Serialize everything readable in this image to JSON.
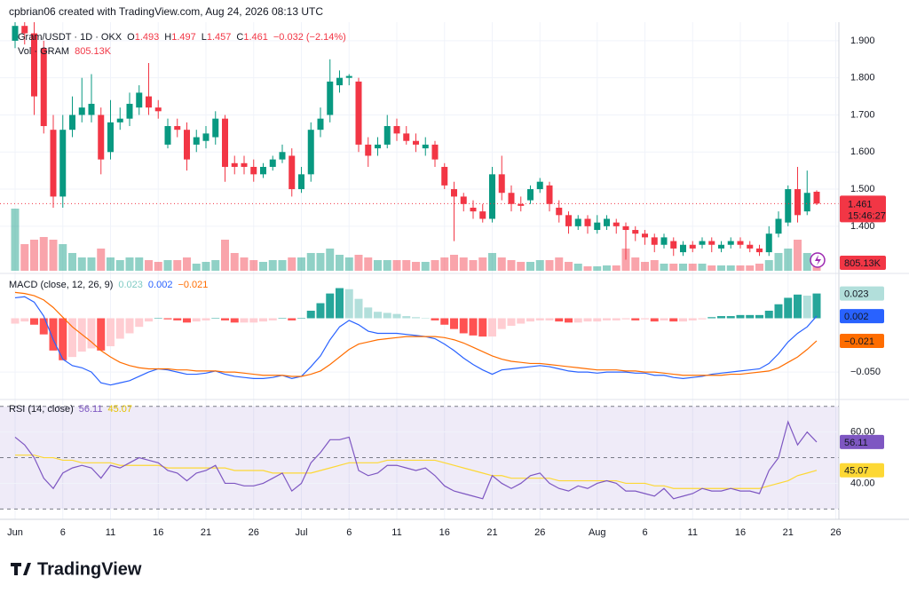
{
  "header": "cpbrian06 created with TradingView.com, Aug 24, 2026 08:13 UTC",
  "logo": "TradingView",
  "chart_data": [
    {
      "type": "candlestick",
      "legend": {
        "symbol": "Gram/USDT · 1D · OKX",
        "o": "O",
        "h": "H",
        "l": "L",
        "c": "C",
        "change": "−0.032 (−2.14%)",
        "vol": "Vol · GRAM"
      },
      "categories": [
        "Jun",
        null,
        null,
        null,
        null,
        "6",
        null,
        null,
        null,
        null,
        "11",
        null,
        null,
        null,
        null,
        "16",
        null,
        null,
        null,
        null,
        "21",
        null,
        null,
        null,
        null,
        "26",
        null,
        null,
        null,
        null,
        "Jul",
        null,
        null,
        null,
        null,
        "6",
        null,
        null,
        null,
        null,
        "11",
        null,
        null,
        null,
        null,
        "16",
        null,
        null,
        null,
        null,
        "21",
        null,
        null,
        null,
        null,
        "26",
        null,
        null,
        null,
        null,
        null,
        "Aug",
        null,
        null,
        null,
        null,
        "6",
        null,
        null,
        null,
        null,
        "11",
        null,
        null,
        null,
        null,
        "16",
        null,
        null,
        null,
        null,
        "21",
        null,
        null,
        null
      ],
      "future_categories": [
        null,
        "26"
      ],
      "open": [
        1.9,
        1.94,
        1.92,
        1.88,
        1.66,
        1.48,
        1.66,
        1.7,
        1.7,
        1.7,
        1.6,
        1.68,
        1.69,
        1.72,
        1.75,
        1.72,
        1.62,
        1.67,
        1.66,
        1.62,
        1.63,
        1.64,
        1.69,
        1.57,
        1.57,
        1.56,
        1.54,
        1.56,
        1.58,
        1.59,
        1.5,
        1.54,
        1.66,
        1.7,
        1.78,
        1.8,
        1.79,
        1.62,
        1.61,
        1.62,
        1.67,
        1.65,
        1.63,
        1.61,
        1.62,
        1.56,
        1.5,
        1.48,
        1.45,
        1.44,
        1.42,
        1.54,
        1.49,
        1.46,
        1.47,
        1.5,
        1.51,
        1.45,
        1.43,
        1.4,
        1.42,
        1.39,
        1.4,
        1.41,
        1.4,
        1.39,
        1.38,
        1.37,
        1.35,
        1.36,
        1.33,
        1.35,
        1.35,
        1.36,
        1.34,
        1.35,
        1.36,
        1.35,
        1.34,
        1.33,
        1.38,
        1.41,
        1.5,
        1.44,
        1.493
      ],
      "high": [
        1.95,
        1.95,
        1.95,
        1.9,
        1.7,
        1.7,
        1.75,
        1.8,
        1.81,
        1.72,
        1.74,
        1.72,
        1.76,
        1.78,
        1.84,
        1.74,
        1.69,
        1.69,
        1.68,
        1.66,
        1.67,
        1.71,
        1.7,
        1.59,
        1.59,
        1.58,
        1.57,
        1.59,
        1.62,
        1.61,
        1.56,
        1.68,
        1.72,
        1.85,
        1.82,
        1.81,
        1.8,
        1.64,
        1.64,
        1.7,
        1.69,
        1.67,
        1.65,
        1.64,
        1.63,
        1.57,
        1.52,
        1.49,
        1.47,
        1.46,
        1.56,
        1.59,
        1.51,
        1.48,
        1.51,
        1.53,
        1.52,
        1.47,
        1.44,
        1.43,
        1.43,
        1.43,
        1.43,
        1.42,
        1.41,
        1.4,
        1.39,
        1.38,
        1.38,
        1.37,
        1.36,
        1.36,
        1.37,
        1.37,
        1.36,
        1.37,
        1.37,
        1.36,
        1.35,
        1.4,
        1.44,
        1.51,
        1.56,
        1.55,
        1.497
      ],
      "low": [
        1.88,
        1.89,
        1.7,
        1.65,
        1.45,
        1.45,
        1.64,
        1.68,
        1.68,
        1.54,
        1.58,
        1.66,
        1.67,
        1.7,
        1.7,
        1.69,
        1.61,
        1.64,
        1.55,
        1.6,
        1.61,
        1.62,
        1.52,
        1.54,
        1.54,
        1.52,
        1.53,
        1.55,
        1.57,
        1.48,
        1.49,
        1.52,
        1.64,
        1.68,
        1.76,
        1.78,
        1.6,
        1.56,
        1.59,
        1.61,
        1.63,
        1.62,
        1.6,
        1.59,
        1.56,
        1.5,
        1.36,
        1.44,
        1.42,
        1.41,
        1.41,
        1.47,
        1.44,
        1.44,
        1.46,
        1.49,
        1.44,
        1.41,
        1.38,
        1.39,
        1.38,
        1.38,
        1.39,
        1.38,
        1.31,
        1.36,
        1.35,
        1.33,
        1.34,
        1.32,
        1.32,
        1.33,
        1.34,
        1.33,
        1.33,
        1.34,
        1.34,
        1.33,
        1.32,
        1.32,
        1.37,
        1.4,
        1.41,
        1.43,
        1.457
      ],
      "close": [
        1.94,
        1.92,
        1.75,
        1.67,
        1.48,
        1.66,
        1.7,
        1.72,
        1.73,
        1.58,
        1.68,
        1.69,
        1.73,
        1.76,
        1.72,
        1.71,
        1.67,
        1.66,
        1.58,
        1.64,
        1.65,
        1.69,
        1.56,
        1.56,
        1.56,
        1.54,
        1.56,
        1.58,
        1.6,
        1.5,
        1.54,
        1.66,
        1.69,
        1.79,
        1.8,
        1.805,
        1.62,
        1.59,
        1.62,
        1.67,
        1.65,
        1.63,
        1.62,
        1.62,
        1.58,
        1.51,
        1.48,
        1.46,
        1.44,
        1.42,
        1.54,
        1.49,
        1.46,
        1.455,
        1.5,
        1.52,
        1.46,
        1.43,
        1.4,
        1.42,
        1.4,
        1.41,
        1.42,
        1.4,
        1.39,
        1.38,
        1.37,
        1.35,
        1.37,
        1.34,
        1.35,
        1.34,
        1.36,
        1.35,
        1.35,
        1.36,
        1.35,
        1.34,
        1.33,
        1.38,
        1.42,
        1.5,
        1.43,
        1.49,
        1.461
      ],
      "volume": [
        3757000,
        1610000,
        1879000,
        2040000,
        1879000,
        1610000,
        1074000,
        805000,
        805000,
        1342000,
        805000,
        644000,
        805000,
        805000,
        644000,
        537000,
        644000,
        644000,
        805000,
        430000,
        537000,
        644000,
        1879000,
        1074000,
        805000,
        644000,
        537000,
        644000,
        644000,
        805000,
        805000,
        1074000,
        1074000,
        1342000,
        966000,
        805000,
        966000,
        805000,
        644000,
        644000,
        644000,
        644000,
        537000,
        537000,
        644000,
        805000,
        966000,
        805000,
        644000,
        805000,
        1074000,
        805000,
        644000,
        537000,
        537000,
        644000,
        644000,
        805000,
        537000,
        430000,
        268000,
        268000,
        322000,
        322000,
        1342000,
        805000,
        537000,
        644000,
        430000,
        430000,
        430000,
        430000,
        430000,
        322000,
        322000,
        322000,
        322000,
        322000,
        430000,
        644000,
        1074000,
        1342000,
        1879000,
        1074000,
        805130
      ],
      "volume_label": "805.13K",
      "up_color": "#089981",
      "down_color": "#f23645",
      "ylim": [
        1.28,
        1.95
      ],
      "yticks": [
        {
          "value": 1.4,
          "label": "1.400"
        },
        {
          "value": 1.5,
          "label": "1.500"
        },
        {
          "value": 1.6,
          "label": "1.600"
        },
        {
          "value": 1.7,
          "label": "1.700"
        },
        {
          "value": 1.8,
          "label": "1.800"
        },
        {
          "value": 1.9,
          "label": "1.900"
        }
      ],
      "countdown": "15:46:27",
      "grid": true
    },
    {
      "type": "macd",
      "title": "MACD (close, 12, 26, 9)",
      "histogram": [
        -0.005,
        -0.003,
        -0.006,
        -0.015,
        -0.03,
        -0.039,
        -0.036,
        -0.031,
        -0.028,
        -0.03,
        -0.026,
        -0.019,
        -0.014,
        -0.008,
        -0.003,
        0,
        -0.001,
        -0.002,
        -0.004,
        -0.003,
        -0.002,
        0,
        -0.002,
        -0.004,
        -0.004,
        -0.004,
        -0.003,
        -0.002,
        0,
        -0.002,
        0,
        0.007,
        0.014,
        0.023,
        0.028,
        0.027,
        0.018,
        0.01,
        0.006,
        0.005,
        0.004,
        0.002,
        0.001,
        0,
        -0.002,
        -0.006,
        -0.01,
        -0.014,
        -0.016,
        -0.017,
        -0.017,
        -0.01,
        -0.007,
        -0.005,
        -0.003,
        -0.002,
        -0.002,
        -0.003,
        -0.004,
        -0.004,
        -0.003,
        -0.003,
        -0.002,
        -0.002,
        -0.001,
        -0.002,
        -0.001,
        -0.003,
        -0.002,
        -0.003,
        -0.003,
        -0.002,
        -0.001,
        0.001,
        0.002,
        0.002,
        0.003,
        0.003,
        0.003,
        0.007,
        0.013,
        0.019,
        0.022,
        0.021,
        0.023
      ],
      "macd": [
        0.019,
        0.02,
        0.015,
        0.002,
        -0.02,
        -0.038,
        -0.044,
        -0.046,
        -0.05,
        -0.06,
        -0.062,
        -0.06,
        -0.058,
        -0.054,
        -0.05,
        -0.047,
        -0.048,
        -0.05,
        -0.052,
        -0.052,
        -0.051,
        -0.049,
        -0.052,
        -0.054,
        -0.055,
        -0.056,
        -0.056,
        -0.055,
        -0.053,
        -0.056,
        -0.054,
        -0.045,
        -0.035,
        -0.02,
        -0.008,
        -0.002,
        -0.006,
        -0.012,
        -0.014,
        -0.014,
        -0.014,
        -0.015,
        -0.016,
        -0.017,
        -0.019,
        -0.024,
        -0.03,
        -0.037,
        -0.043,
        -0.048,
        -0.052,
        -0.048,
        -0.047,
        -0.046,
        -0.045,
        -0.044,
        -0.045,
        -0.047,
        -0.049,
        -0.05,
        -0.05,
        -0.051,
        -0.05,
        -0.05,
        -0.05,
        -0.051,
        -0.051,
        -0.053,
        -0.053,
        -0.055,
        -0.056,
        -0.055,
        -0.054,
        -0.052,
        -0.051,
        -0.05,
        -0.049,
        -0.048,
        -0.047,
        -0.042,
        -0.033,
        -0.022,
        -0.014,
        -0.008,
        0.002
      ],
      "signal": [
        0.024,
        0.023,
        0.021,
        0.017,
        0.01,
        0.001,
        -0.008,
        -0.015,
        -0.022,
        -0.03,
        -0.036,
        -0.041,
        -0.044,
        -0.046,
        -0.047,
        -0.047,
        -0.047,
        -0.048,
        -0.048,
        -0.049,
        -0.049,
        -0.049,
        -0.05,
        -0.05,
        -0.051,
        -0.052,
        -0.053,
        -0.053,
        -0.053,
        -0.054,
        -0.054,
        -0.052,
        -0.049,
        -0.043,
        -0.036,
        -0.029,
        -0.024,
        -0.022,
        -0.02,
        -0.019,
        -0.018,
        -0.017,
        -0.017,
        -0.017,
        -0.017,
        -0.018,
        -0.02,
        -0.023,
        -0.027,
        -0.031,
        -0.035,
        -0.038,
        -0.04,
        -0.041,
        -0.042,
        -0.042,
        -0.043,
        -0.044,
        -0.045,
        -0.046,
        -0.047,
        -0.048,
        -0.048,
        -0.048,
        -0.049,
        -0.049,
        -0.05,
        -0.05,
        -0.051,
        -0.052,
        -0.053,
        -0.053,
        -0.053,
        -0.053,
        -0.053,
        -0.052,
        -0.052,
        -0.051,
        -0.05,
        -0.049,
        -0.046,
        -0.041,
        -0.036,
        -0.029,
        -0.021
      ],
      "histogram_label": "0.023",
      "macd_label": "0.002",
      "signal_label": "−0.021",
      "histogram_colors": [
        "#26a69a",
        "#b2dfdb",
        "#ffcdd2",
        "#ff5252"
      ],
      "macd_color": "#2962ff",
      "signal_color": "#ff6d00",
      "ylim": [
        -0.073,
        0.04
      ],
      "yticks": [
        {
          "value": -0.05,
          "label": "−0.050"
        }
      ]
    },
    {
      "type": "rsi",
      "title": "RSI (14, close)",
      "rsi": [
        58,
        55,
        50,
        42,
        38,
        44,
        46,
        47,
        46,
        42,
        47,
        46,
        48,
        50,
        49,
        48,
        45,
        44,
        41,
        44,
        45,
        47,
        40,
        40,
        39,
        39,
        40,
        42,
        44,
        37,
        40,
        48,
        52,
        57,
        57,
        58,
        45,
        43,
        44,
        47,
        47,
        46,
        45,
        46,
        43,
        39,
        37,
        36,
        35,
        34,
        43,
        40,
        38,
        40,
        43,
        44,
        40,
        38,
        37,
        39,
        38,
        40,
        41,
        40,
        37,
        37,
        36,
        35,
        38,
        34,
        35,
        36,
        38,
        37,
        37,
        38,
        37,
        37,
        36,
        45,
        50,
        64,
        55,
        60,
        56.11
      ],
      "ma": [
        51,
        51,
        51,
        50,
        50,
        49,
        49,
        48,
        48,
        48,
        48,
        47,
        47,
        47,
        47,
        47,
        46,
        46,
        46,
        46,
        46,
        46,
        46,
        45,
        45,
        45,
        45,
        44,
        44,
        44,
        44,
        44,
        45,
        46,
        47,
        48,
        48,
        48,
        48,
        49,
        49,
        49,
        49,
        49,
        49,
        48,
        47,
        46,
        45,
        44,
        43,
        43,
        42,
        42,
        42,
        42,
        42,
        41,
        41,
        41,
        41,
        41,
        41,
        41,
        40,
        40,
        40,
        39,
        39,
        38,
        38,
        38,
        38,
        38,
        38,
        38,
        38,
        38,
        38,
        39,
        40,
        41,
        43,
        44,
        45.07
      ],
      "rsi_color": "#7e57c2",
      "ma_color": "#fdd835",
      "ylim": [
        27,
        72
      ],
      "yticks": [
        {
          "value": 40,
          "label": "40.00"
        },
        {
          "value": 60,
          "label": "60.00"
        }
      ],
      "bands": [
        70,
        50,
        30
      ]
    }
  ]
}
